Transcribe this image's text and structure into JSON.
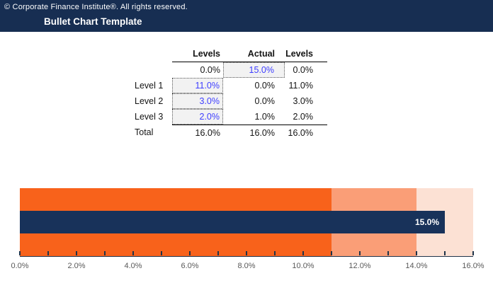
{
  "header": {
    "copyright": "© Corporate Finance Institute®. All rights reserved.",
    "title": "Bullet Chart Template"
  },
  "table": {
    "headers": {
      "label": "",
      "levels1": "Levels",
      "actual": "Actual",
      "levels2": "Levels"
    },
    "rows": [
      {
        "label": "",
        "values": [
          "0.0%",
          "15.0%",
          "0.0%"
        ]
      },
      {
        "label": "Level 1",
        "values": [
          "11.0%",
          "0.0%",
          "11.0%"
        ]
      },
      {
        "label": "Level 2",
        "values": [
          "3.0%",
          "0.0%",
          "3.0%"
        ]
      },
      {
        "label": "Level 3",
        "values": [
          "2.0%",
          "1.0%",
          "2.0%"
        ]
      },
      {
        "label": "Total",
        "values": [
          "16.0%",
          "16.0%",
          "16.0%"
        ]
      }
    ]
  },
  "chart_data": {
    "type": "bar",
    "subtype": "bullet",
    "orientation": "horizontal",
    "x_range_pct": [
      0,
      16
    ],
    "minor_tick_step_pct": 1,
    "major_tick_step_pct": 2,
    "x_tick_labels": [
      "0.0%",
      "2.0%",
      "4.0%",
      "6.0%",
      "8.0%",
      "10.0%",
      "12.0%",
      "14.0%",
      "16.0%"
    ],
    "bands": [
      {
        "label": "Level 1",
        "from_pct": 0,
        "to_pct": 11,
        "color": "#F8621B"
      },
      {
        "label": "Level 2",
        "from_pct": 11,
        "to_pct": 14,
        "color": "#FA9E77"
      },
      {
        "label": "Level 3",
        "from_pct": 14,
        "to_pct": 16,
        "color": "#FCE1D4"
      }
    ],
    "measure": {
      "label": "Actual",
      "value_pct": 15,
      "display": "15.0%",
      "color": "#18325A"
    },
    "grid": false,
    "legend": false
  },
  "colors": {
    "header_bg": "#172E52",
    "header_text": "#FFFFFF",
    "input_text": "#3E3EFF",
    "input_bg": "#F2F2F2",
    "axis_label": "#595959",
    "axis_line": "#1F3349"
  }
}
